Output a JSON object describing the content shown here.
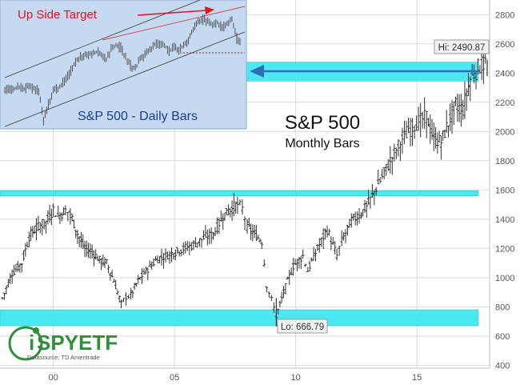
{
  "chart_data": [
    {
      "type": "ohlc",
      "title": "S&P 500",
      "subtitle": "Monthly Bars",
      "x_ticks": [
        "00",
        "05",
        "10",
        "15"
      ],
      "x_range": [
        1997.8,
        2018.0
      ],
      "ylim": [
        380,
        2900
      ],
      "y_ticks": [
        400,
        600,
        800,
        1000,
        1200,
        1400,
        1600,
        1800,
        2000,
        2200,
        2400,
        2600,
        2800
      ],
      "grid": true,
      "series": [
        {
          "x": [
            1997.9,
            1998.3,
            1998.7,
            1999.0,
            1999.3,
            1999.7,
            2000.0,
            2000.2,
            2000.5,
            2000.7,
            2001.0,
            2001.3,
            2001.6,
            2001.9,
            2002.2,
            2002.5,
            2002.8,
            2003.0,
            2003.2,
            2003.5,
            2003.9,
            2004.3,
            2004.8,
            2005.2,
            2005.7,
            2006.2,
            2006.6,
            2007.0,
            2007.3,
            2007.6,
            2007.8,
            2008.0,
            2008.3,
            2008.6,
            2008.8,
            2009.0,
            2009.2,
            2009.5,
            2009.9,
            2010.3,
            2010.5,
            2010.9,
            2011.3,
            2011.7,
            2011.9,
            2012.3,
            2012.7,
            2013.0,
            2013.4,
            2013.9,
            2014.4,
            2014.9,
            2015.4,
            2015.7,
            2016.0,
            2016.3,
            2016.6,
            2016.9,
            2017.2,
            2017.6,
            2017.9
          ],
          "y": [
            860,
            1030,
            1100,
            1280,
            1340,
            1380,
            1470,
            1420,
            1460,
            1440,
            1300,
            1200,
            1180,
            1120,
            1100,
            980,
            820,
            870,
            880,
            980,
            1060,
            1130,
            1160,
            1190,
            1220,
            1270,
            1300,
            1420,
            1470,
            1500,
            1470,
            1350,
            1300,
            1250,
            950,
            850,
            735,
            900,
            1080,
            1150,
            1050,
            1200,
            1330,
            1150,
            1250,
            1390,
            1440,
            1510,
            1640,
            1800,
            1950,
            2050,
            2100,
            1950,
            1930,
            2060,
            2180,
            2150,
            2360,
            2450,
            2480
          ]
        }
      ],
      "bands": [
        {
          "low": 2345,
          "high": 2475,
          "color": "#4be8f1"
        },
        {
          "low": 1560,
          "high": 1595,
          "color": "#4be8f1"
        },
        {
          "low": 670,
          "high": 780,
          "color": "#4be8f1"
        }
      ],
      "annotations": [
        {
          "text": "Hi: 2490.87",
          "x": 2017.9,
          "y": 2490.87
        },
        {
          "text": "Lo: 666.79",
          "x": 2009.2,
          "y": 666.79
        }
      ]
    },
    {
      "type": "ohlc",
      "title": "S&P 500 - Daily Bars",
      "annotation": "Up Side Target",
      "x": [
        1,
        3,
        5,
        7,
        9,
        11,
        13,
        15,
        17,
        19,
        21,
        23,
        25,
        27,
        29,
        31,
        33,
        35,
        37,
        39,
        41,
        43,
        45,
        47,
        49,
        51,
        53,
        55,
        57,
        59,
        61,
        63,
        65,
        67,
        69,
        71,
        73,
        75,
        77,
        79,
        81,
        83,
        85,
        87,
        89,
        91,
        93,
        95,
        97,
        99
      ],
      "y": [
        2330,
        2340,
        2345,
        2355,
        2345,
        2360,
        2345,
        2330,
        2140,
        2250,
        2330,
        2350,
        2380,
        2420,
        2480,
        2530,
        2550,
        2560,
        2570,
        2575,
        2560,
        2530,
        2590,
        2620,
        2600,
        2540,
        2490,
        2470,
        2530,
        2560,
        2590,
        2620,
        2630,
        2620,
        2580,
        2600,
        2580,
        2620,
        2650,
        2720,
        2760,
        2780,
        2770,
        2750,
        2760,
        2720,
        2750,
        2780,
        2660,
        2620
      ]
    }
  ],
  "logo": {
    "brand": "SPYETF",
    "tagline": "Datasource: TD Ameritrade"
  },
  "colors": {
    "band": "#4be8f1",
    "inset_bg": "#c5d9f1",
    "target": "#e3111b",
    "title": "#1b3d8f",
    "bars": "#303030",
    "grid": "#d9d9d9"
  }
}
